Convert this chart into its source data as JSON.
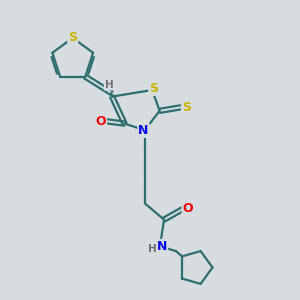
{
  "background_color": "#d6dce0",
  "atom_colors": {
    "S": "#c8b400",
    "N": "#0000ee",
    "O": "#ee0000",
    "C": "#2d6e6e",
    "H": "#707070"
  },
  "bond_color": "#2d6e6e",
  "bond_width": 1.6,
  "figsize": [
    3.0,
    3.0
  ],
  "dpi": 100
}
